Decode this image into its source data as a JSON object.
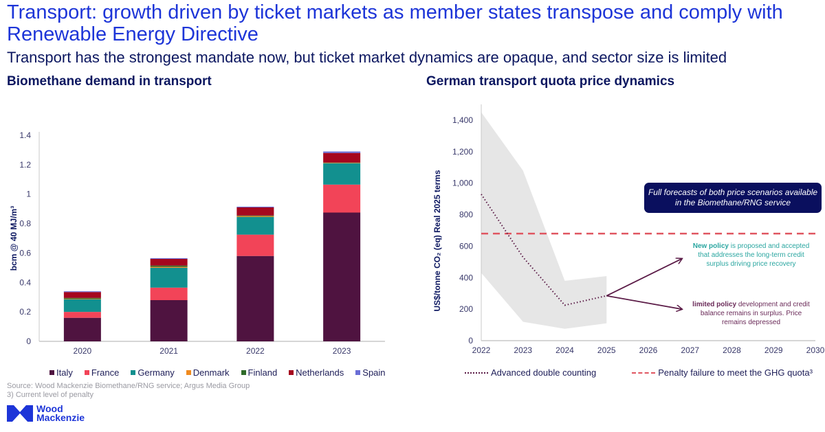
{
  "header": {
    "title": "Transport: growth driven by ticket markets as member states transpose and comply with Renewable Energy Directive",
    "subtitle": "Transport has the strongest mandate now, but ticket market dynamics are opaque, and sector size is limited"
  },
  "footer": {
    "source": "Source: Wood Mackenzie Biomethane/RNG service; Argus Media Group",
    "footnote": "3) Current level of penalty",
    "logo_line1": "Wood",
    "logo_line2": "Mackenzie"
  },
  "chart_data": [
    {
      "type": "bar",
      "stacked": true,
      "title": "Biomethane demand in transport",
      "xlabel": "",
      "ylabel": "bcm @ 40 MJ/m³",
      "ylim": [
        0,
        1.4
      ],
      "yticks": [
        0,
        0.2,
        0.4,
        0.6,
        0.8,
        1,
        1.2,
        1.4
      ],
      "ytick_labels": [
        "0",
        "0.2",
        "0.4",
        "0.6",
        "0.8",
        "1",
        "1.2",
        "1.4"
      ],
      "categories": [
        "2020",
        "2021",
        "2022",
        "2023"
      ],
      "series": [
        {
          "name": "Italy",
          "color": "#4f1340",
          "values": [
            0.16,
            0.28,
            0.58,
            0.875
          ]
        },
        {
          "name": "France",
          "color": "#f24458",
          "values": [
            0.04,
            0.085,
            0.145,
            0.19
          ]
        },
        {
          "name": "Germany",
          "color": "#12908f",
          "values": [
            0.085,
            0.135,
            0.12,
            0.145
          ]
        },
        {
          "name": "Denmark",
          "color": "#f08a1e",
          "values": [
            0.003,
            0.006,
            0.006,
            0.003
          ]
        },
        {
          "name": "Finland",
          "color": "#2f6b2a",
          "values": [
            0.007,
            0.009,
            0.004,
            0.002
          ]
        },
        {
          "name": "Netherlands",
          "color": "#a5061e",
          "values": [
            0.04,
            0.045,
            0.055,
            0.065
          ]
        },
        {
          "name": "Spain",
          "color": "#6a6ed6",
          "values": [
            0.005,
            0.005,
            0.005,
            0.01
          ]
        }
      ],
      "legend": "bottom"
    },
    {
      "type": "line",
      "title": "German transport quota price dynamics",
      "xlabel": "",
      "ylabel": "US$/tonne CO₂ (eq) Real 2025 terms",
      "xlim": [
        2022,
        2030
      ],
      "ylim": [
        0,
        1400
      ],
      "xticks": [
        "2022",
        "2023",
        "2024",
        "2025",
        "2026",
        "2027",
        "2028",
        "2029",
        "2030"
      ],
      "yticks": [
        0,
        200,
        400,
        600,
        800,
        1000,
        1200,
        1400
      ],
      "ytick_labels": [
        "0",
        "200",
        "400",
        "600",
        "800",
        "1,000",
        "1,200",
        "1,400"
      ],
      "series": [
        {
          "name": "Advanced double counting",
          "style": "dotted",
          "color": "#5a1a46",
          "x": [
            2022,
            2023,
            2024,
            2025
          ],
          "y": [
            930,
            530,
            225,
            285
          ]
        },
        {
          "name": "Penalty failure to meet the GHG quota³",
          "style": "dashed",
          "color": "#e05560",
          "x": [
            2022,
            2030
          ],
          "y": [
            680,
            680
          ]
        }
      ],
      "band": {
        "color": "#e6e6e6",
        "x": [
          2022,
          2023,
          2024,
          2025
        ],
        "upper": [
          1450,
          1080,
          380,
          410
        ],
        "lower": [
          430,
          120,
          75,
          110
        ]
      },
      "arrows": [
        {
          "from": [
            2025,
            285
          ],
          "to": [
            2026.8,
            520
          ],
          "label_bold": "New policy",
          "label_rest": " is proposed and accepted that addresses the long-term credit surplus driving price recovery",
          "color": "#2aa6a0"
        },
        {
          "from": [
            2025,
            285
          ],
          "to": [
            2026.8,
            200
          ],
          "label_bold": "limited policy",
          "label_rest": " development and credit balance remains in surplus. Price remains depressed",
          "color": "#6a2a58"
        }
      ],
      "callout": "Full forecasts of both price scenarios available in the Biomethane/RNG service",
      "legend": "bottom"
    }
  ]
}
